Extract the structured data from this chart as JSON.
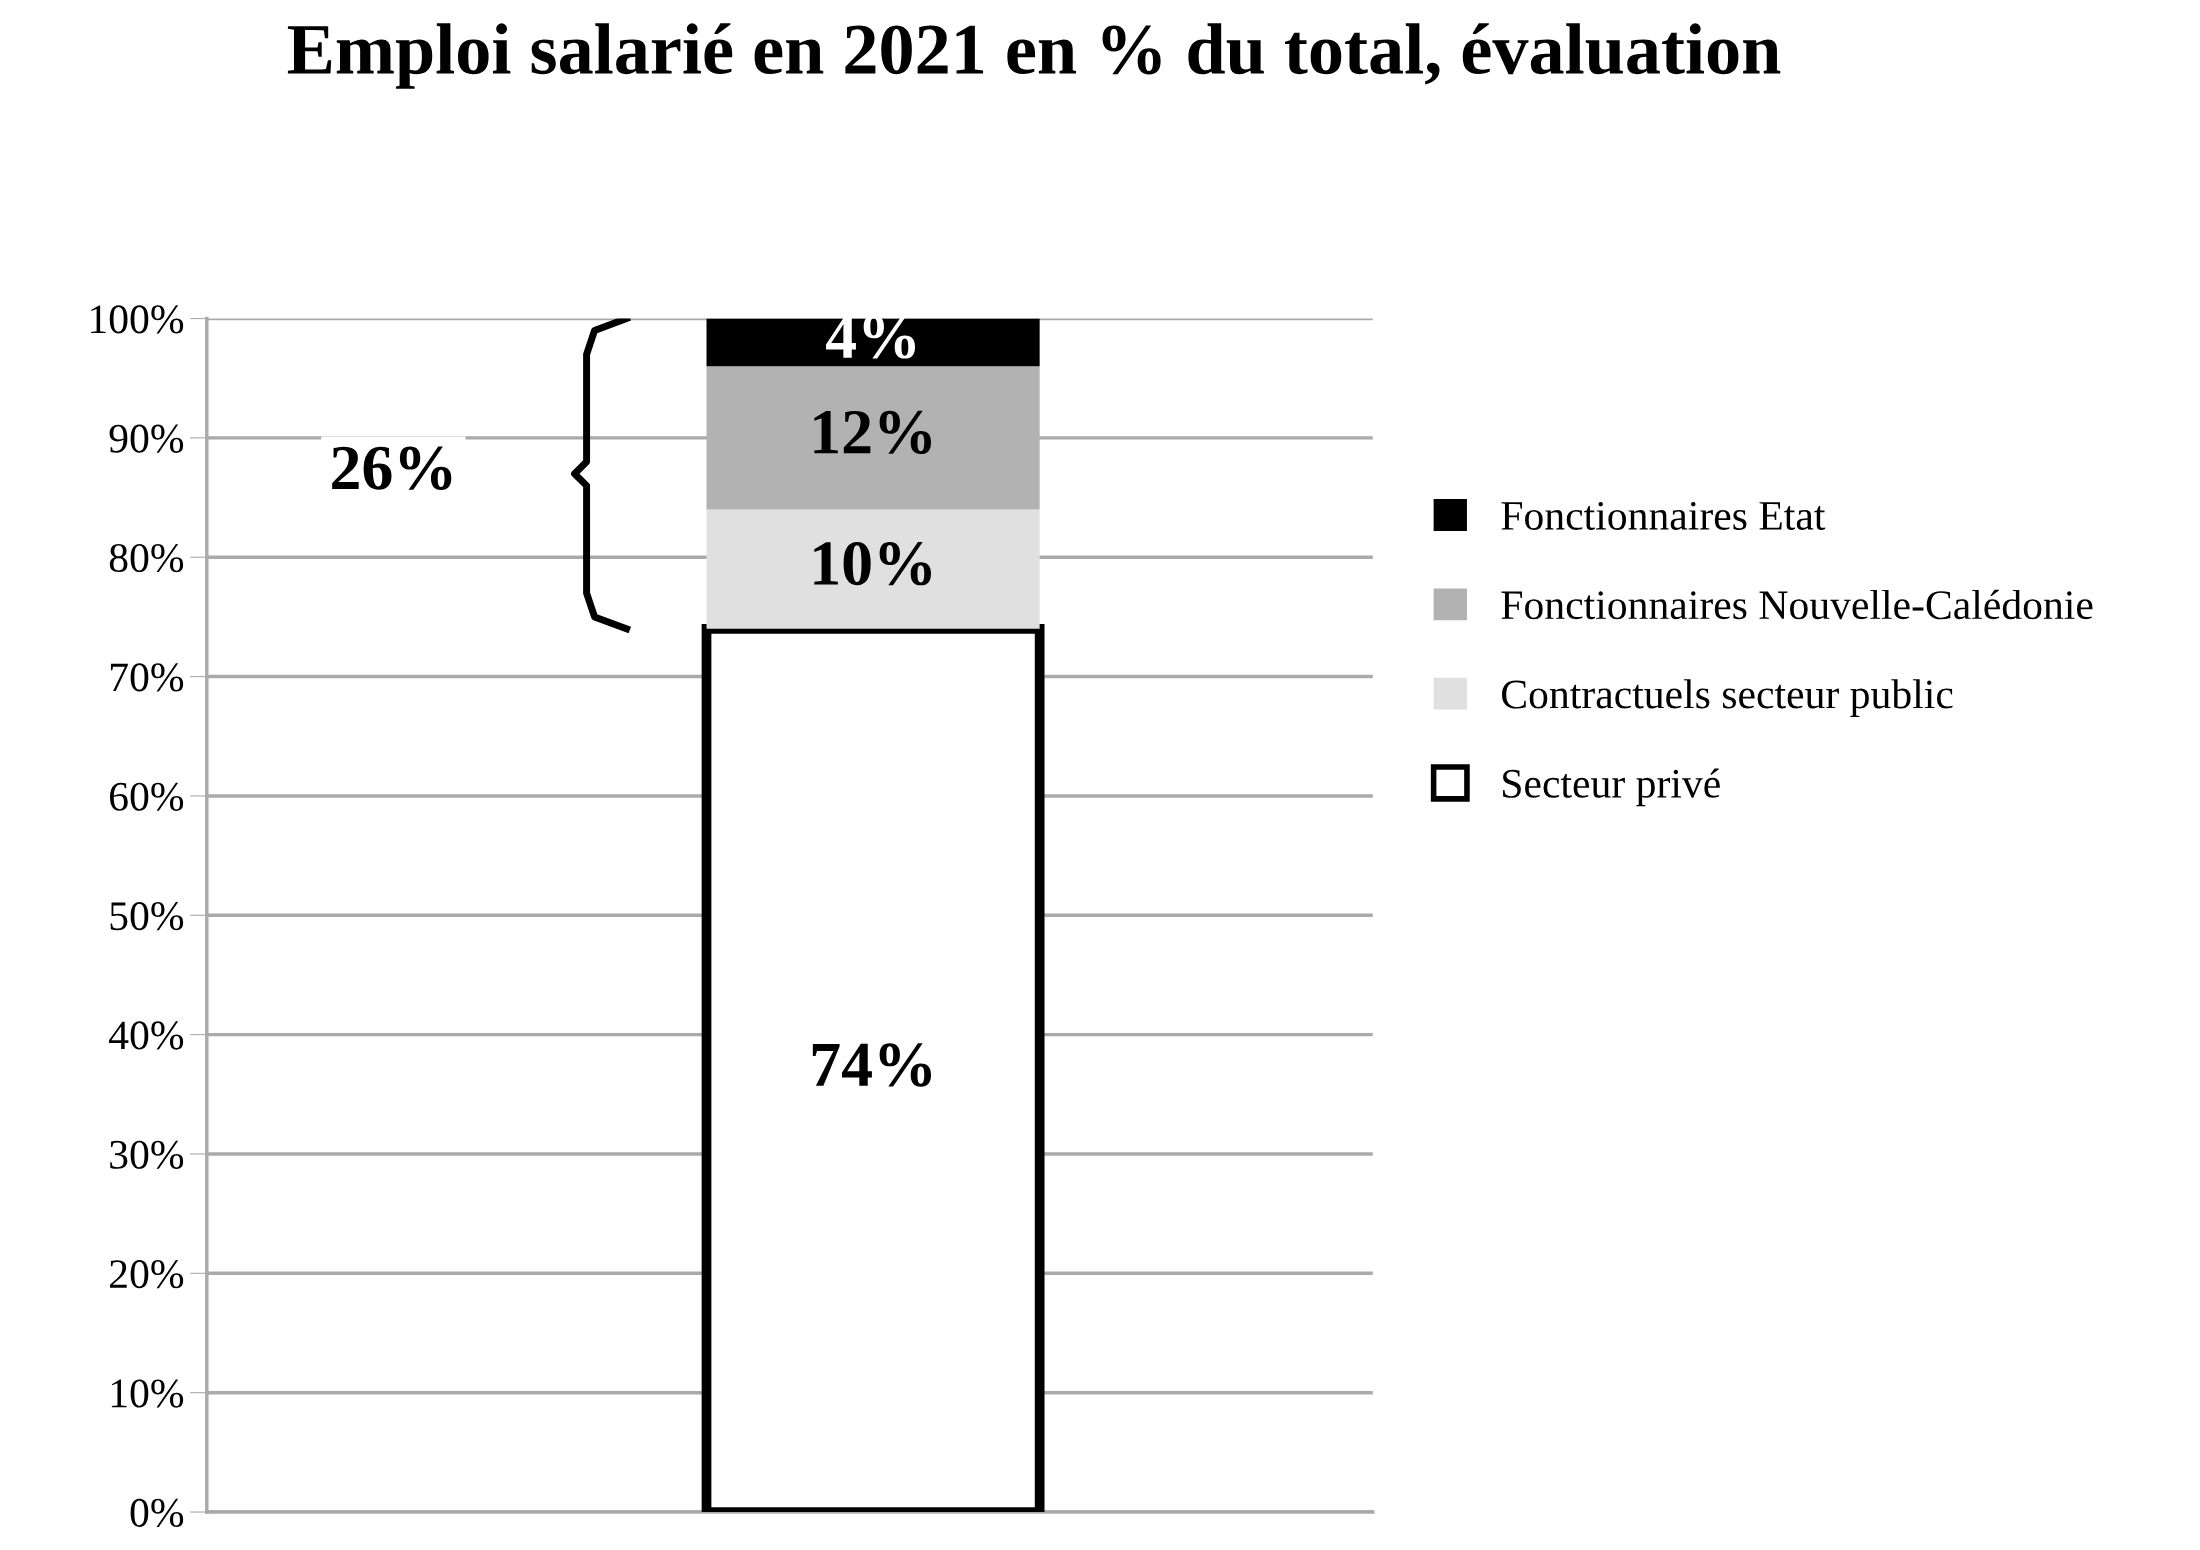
{
  "chart_data": {
    "type": "bar",
    "title": "Emploi salarié en 2021 en % du total, évaluation",
    "categories": [
      null
    ],
    "stacked": true,
    "series": [
      {
        "name": "Secteur privé",
        "color": "#ffffff",
        "values": [
          74
        ],
        "value_labels": [
          "74%"
        ]
      },
      {
        "name": "Contractuels secteur public",
        "color": "#e0e0e0",
        "values": [
          10
        ],
        "value_labels": [
          "10%"
        ]
      },
      {
        "name": "Fonctionnaires Nouvelle-Calédonie",
        "color": "#b2b2b2",
        "values": [
          12
        ],
        "value_labels": [
          "12%"
        ]
      },
      {
        "name": "Fonctionnaires Etat",
        "color": "#000000",
        "values": [
          4
        ],
        "value_labels": [
          "4%"
        ]
      }
    ],
    "ylim": [
      0,
      100
    ],
    "yticks": [
      {
        "value": 0,
        "label": "0%"
      },
      {
        "value": 10,
        "label": "10%"
      },
      {
        "value": 20,
        "label": "20%"
      },
      {
        "value": 30,
        "label": "30%"
      },
      {
        "value": 40,
        "label": "40%"
      },
      {
        "value": 50,
        "label": "50%"
      },
      {
        "value": 60,
        "label": "60%"
      },
      {
        "value": 70,
        "label": "70%"
      },
      {
        "value": 80,
        "label": "80%"
      },
      {
        "value": 90,
        "label": "90%"
      },
      {
        "value": 100,
        "label": "100%"
      }
    ],
    "grid": "y",
    "legend": "right",
    "annotations": [
      "26%"
    ]
  }
}
